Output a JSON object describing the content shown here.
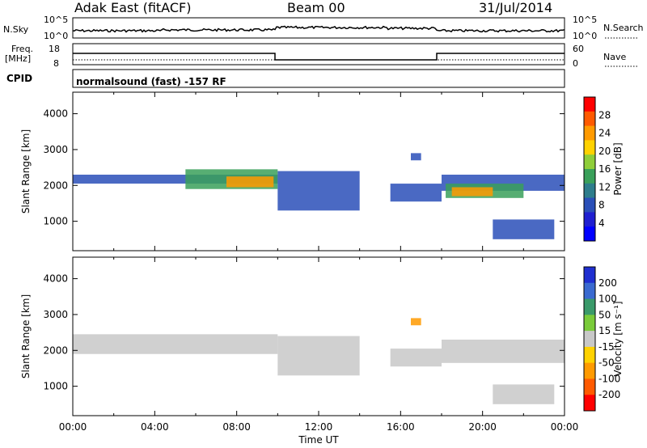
{
  "header": {
    "radar": "Adak East (fitACF)",
    "beam": "Beam 00",
    "date": "31/Jul/2014"
  },
  "top_panels": {
    "nsky_label": "N.Sky",
    "nsky_ticks": [
      "10^5",
      "10^0"
    ],
    "nsearch_label": "N.Search",
    "nsearch_ticks": [
      "10^5",
      "10^0"
    ],
    "freq_label": "Freq.",
    "freq_unit": "[MHz]",
    "freq_ticks": [
      "18",
      "8"
    ],
    "nave_label": "Nave",
    "nave_ticks": [
      "60",
      "0"
    ],
    "cpid_label": "CPID",
    "cpid_text": "normalsound (fast) -157 RF"
  },
  "chart_data": [
    {
      "type": "heatmap",
      "panel": "power",
      "ylabel": "Slant Range [km]",
      "yticks": [
        1000,
        2000,
        3000,
        4000
      ],
      "ylim": [
        180,
        4600
      ],
      "xlim": [
        0,
        24
      ],
      "colorbar": {
        "label": "Power [dB]",
        "ticks": [
          "28",
          "24",
          "20",
          "16",
          "12",
          "8",
          "4"
        ],
        "colors": [
          "#ff0000",
          "#ff5a00",
          "#ff9a00",
          "#ffd200",
          "#8fce3a",
          "#3aa05a",
          "#2e7d8c",
          "#2a4fb8",
          "#1f1fd0",
          "#0000ff"
        ]
      },
      "bands": [
        {
          "t0": 0.0,
          "t1": 10.0,
          "r0": 2050,
          "r1": 2300,
          "color": "#2a4fb8"
        },
        {
          "t0": 5.5,
          "t1": 10.0,
          "r0": 1900,
          "r1": 2450,
          "color": "#3aa05a"
        },
        {
          "t0": 7.5,
          "t1": 9.8,
          "r0": 1950,
          "r1": 2250,
          "color": "#ff9a00"
        },
        {
          "t0": 10.0,
          "t1": 14.0,
          "r0": 1300,
          "r1": 2400,
          "color": "#2a4fb8"
        },
        {
          "t0": 15.5,
          "t1": 18.0,
          "r0": 1550,
          "r1": 2050,
          "color": "#2a4fb8"
        },
        {
          "t0": 16.5,
          "t1": 17.0,
          "r0": 2700,
          "r1": 2900,
          "color": "#2a4fb8"
        },
        {
          "t0": 18.0,
          "t1": 24.0,
          "r0": 1850,
          "r1": 2300,
          "color": "#2a4fb8"
        },
        {
          "t0": 18.2,
          "t1": 22.0,
          "r0": 1650,
          "r1": 2050,
          "color": "#3aa05a"
        },
        {
          "t0": 18.5,
          "t1": 20.5,
          "r0": 1700,
          "r1": 1950,
          "color": "#ff9a00"
        },
        {
          "t0": 20.5,
          "t1": 23.5,
          "r0": 500,
          "r1": 1050,
          "color": "#2a4fb8"
        }
      ]
    },
    {
      "type": "heatmap",
      "panel": "velocity",
      "ylabel": "Slant Range [km]",
      "xlabel": "Time UT",
      "yticks": [
        1000,
        2000,
        3000,
        4000
      ],
      "ylim": [
        180,
        4600
      ],
      "xlim": [
        0,
        24
      ],
      "xticks": [
        "00:00",
        "04:00",
        "08:00",
        "12:00",
        "16:00",
        "20:00",
        "00:00"
      ],
      "colorbar": {
        "label": "Velocity [m s⁻¹]",
        "ticks": [
          "200",
          "100",
          "50",
          "15",
          "-15",
          "-50",
          "-100",
          "-200"
        ],
        "colors": [
          "#1f2fd0",
          "#3a6ad0",
          "#3a9a6a",
          "#7acb3a",
          "#c8c8c8",
          "#ffd200",
          "#ff9a00",
          "#ff5a00",
          "#ff0000"
        ]
      },
      "bands": [
        {
          "t0": 0.0,
          "t1": 10.0,
          "r0": 1900,
          "r1": 2450,
          "color": "#c8c8c8"
        },
        {
          "t0": 10.0,
          "t1": 14.0,
          "r0": 1300,
          "r1": 2400,
          "color": "#c8c8c8"
        },
        {
          "t0": 16.5,
          "t1": 17.0,
          "r0": 2700,
          "r1": 2900,
          "color": "#ff9a00"
        },
        {
          "t0": 15.5,
          "t1": 18.0,
          "r0": 1550,
          "r1": 2050,
          "color": "#c8c8c8"
        },
        {
          "t0": 18.0,
          "t1": 24.0,
          "r0": 1650,
          "r1": 2300,
          "color": "#c8c8c8"
        },
        {
          "t0": 20.5,
          "t1": 23.5,
          "r0": 500,
          "r1": 1050,
          "color": "#c8c8c8"
        }
      ]
    }
  ]
}
